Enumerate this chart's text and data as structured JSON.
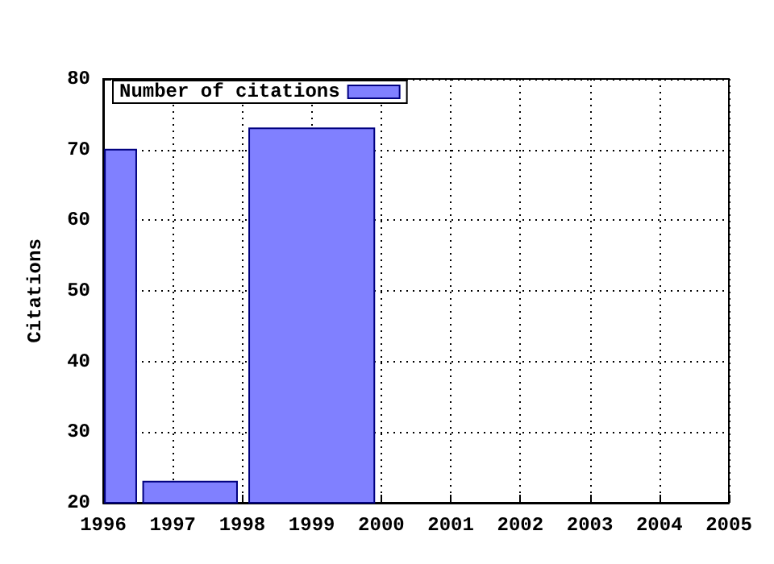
{
  "chart_data": {
    "type": "histogram",
    "ylabel": "Citations",
    "bins": [
      1996,
      1996.5,
      1998,
      2000
    ],
    "series": [
      {
        "name": "Number of citations",
        "color": "#8080ff",
        "values": [
          70,
          23,
          73
        ]
      }
    ],
    "xlim": [
      1996,
      2005
    ],
    "xticks": [
      1996,
      1997,
      1998,
      1999,
      2000,
      2001,
      2002,
      2003,
      2004,
      2005
    ],
    "ylim": [
      20,
      80
    ],
    "yticks": [
      20,
      30,
      40,
      50,
      60,
      70,
      80
    ],
    "grid": true,
    "legend": "top left"
  }
}
